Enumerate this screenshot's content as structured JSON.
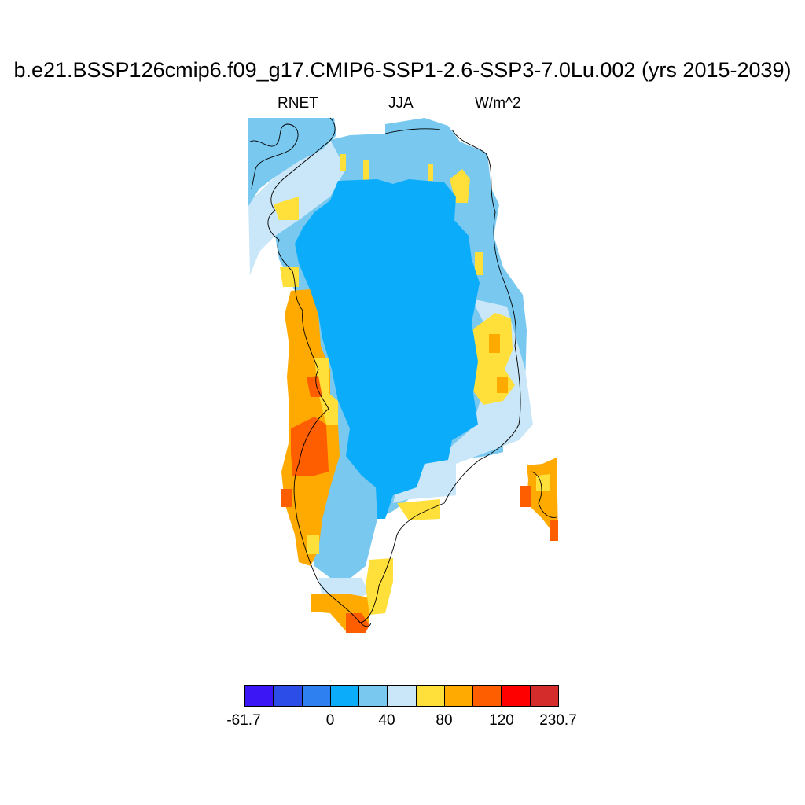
{
  "title": "b.e21.BSSP126cmip6.f09_g17.CMIP6-SSP1-2.6-SSP3-7.0Lu.002 (yrs 2015-2039)",
  "variable": "RNET",
  "season": "JJA",
  "units": "W/m^2",
  "colorbar": {
    "colors": [
      "#3c16f5",
      "#2c4de8",
      "#2e80f0",
      "#0bacfa",
      "#78c8f0",
      "#c9e7f8",
      "#ffdf3a",
      "#ffaa00",
      "#ff5e00",
      "#ff0000",
      "#d42b2b"
    ],
    "labels": [
      "-61.7",
      "0",
      "40",
      "80",
      "120",
      "230.7"
    ]
  },
  "map_colors": {
    "interior": "#0bacfa",
    "coast_light": "#78c8f0",
    "coast_pale": "#c9e7f8",
    "yellow": "#ffdf3a",
    "orange": "#ffaa00",
    "dark_orange": "#ff5e00",
    "outline": "#000000"
  }
}
